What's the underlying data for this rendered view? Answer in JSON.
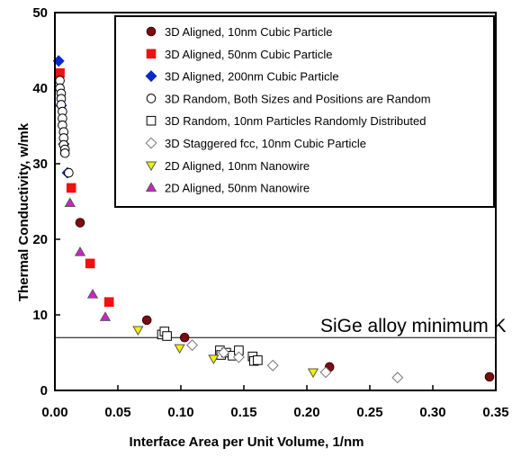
{
  "chart_data": {
    "type": "scatter",
    "title": "",
    "xlabel": "Interface Area per Unit Volume, 1/nm",
    "ylabel": "Thermal Conductivity, w/mk",
    "xlim": [
      0,
      0.35
    ],
    "ylim": [
      0,
      50
    ],
    "x_ticks": [
      "0.00",
      "0.05",
      "0.10",
      "0.15",
      "0.20",
      "0.25",
      "0.30",
      "0.35"
    ],
    "y_ticks": [
      "0",
      "10",
      "20",
      "30",
      "40",
      "50"
    ],
    "grid": false,
    "legend_position": "top-right",
    "reference_line": {
      "y": 7,
      "label": "SiGe alloy minimum K"
    },
    "series": [
      {
        "name": "3D Aligned, 10nm Cubic Particle",
        "marker": "circle",
        "color": "#7a0d12",
        "filled": true,
        "x": [
          0.02,
          0.073,
          0.103,
          0.146,
          0.218,
          0.345
        ],
        "y": [
          22.2,
          9.3,
          7.0,
          5.1,
          3.1,
          1.8
        ]
      },
      {
        "name": "3D Aligned, 50nm Cubic Particle",
        "marker": "square",
        "color": "#ee1111",
        "filled": true,
        "x": [
          0.004,
          0.013,
          0.028,
          0.043
        ],
        "y": [
          42.0,
          26.8,
          16.8,
          11.7
        ]
      },
      {
        "name": "3D Aligned, 200nm Cubic Particle",
        "marker": "diamond",
        "color": "#0a28c8",
        "filled": true,
        "x": [
          0.003,
          0.005,
          0.007,
          0.01
        ],
        "y": [
          43.6,
          37.7,
          32.6,
          28.8
        ]
      },
      {
        "name": "3D Random, Both Sizes and Positions are Random",
        "marker": "circle",
        "color": "#000000",
        "filled": false,
        "x": [
          0.004,
          0.004,
          0.005,
          0.005,
          0.005,
          0.006,
          0.006,
          0.006,
          0.007,
          0.007,
          0.007,
          0.008,
          0.008,
          0.011
        ],
        "y": [
          41.0,
          40.0,
          39.3,
          38.6,
          37.8,
          36.9,
          36.0,
          35.1,
          34.2,
          33.4,
          32.5,
          31.9,
          31.4,
          28.8
        ]
      },
      {
        "name": "3D Random, 10nm Particles Randomly Distributed",
        "marker": "square",
        "color": "#000000",
        "filled": false,
        "x": [
          0.085,
          0.087,
          0.089,
          0.131,
          0.132,
          0.136,
          0.141,
          0.146,
          0.157,
          0.158,
          0.161
        ],
        "y": [
          7.4,
          7.8,
          7.2,
          5.3,
          4.7,
          5.0,
          4.6,
          5.3,
          4.5,
          3.9,
          4.0
        ]
      },
      {
        "name": "3D Staggered fcc, 10nm Cubic Particle",
        "marker": "diamond",
        "color": "#777777",
        "filled": false,
        "x": [
          0.109,
          0.134,
          0.146,
          0.173,
          0.215,
          0.272
        ],
        "y": [
          6.0,
          5.0,
          4.4,
          3.3,
          2.4,
          1.7
        ]
      },
      {
        "name": "2D Aligned, 10nm Nanowire",
        "marker": "triangle-down",
        "color": "#f2f200",
        "filled": true,
        "x": [
          0.066,
          0.099,
          0.126,
          0.205
        ],
        "y": [
          8.0,
          5.6,
          4.2,
          2.4
        ]
      },
      {
        "name": "2D Aligned, 50nm Nanowire",
        "marker": "triangle-up",
        "color": "#d020d0",
        "filled": true,
        "x": [
          0.012,
          0.02,
          0.03,
          0.04
        ],
        "y": [
          24.8,
          18.3,
          12.7,
          9.7
        ]
      }
    ]
  }
}
